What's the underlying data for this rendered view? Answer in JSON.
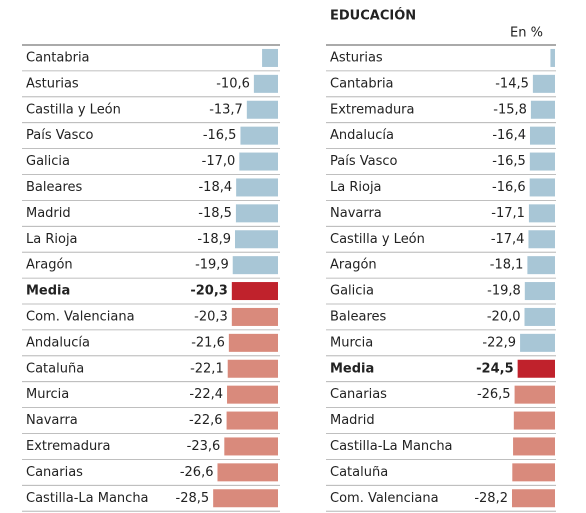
{
  "chart_data": [
    {
      "type": "bar",
      "orientation": "horizontal",
      "categories": [
        "Cantabria",
        "Asturias",
        "Castilla y León",
        "País Vasco",
        "Galicia",
        "Baleares",
        "Madrid",
        "La Rioja",
        "Aragón",
        "Media",
        "Com. Valenciana",
        "Andalucía",
        "Cataluña",
        "Murcia",
        "Navarra",
        "Extremadura",
        "Canarias",
        "Castilla-La Mancha"
      ],
      "values": [
        -7,
        -10.6,
        -13.7,
        -16.5,
        -17.0,
        -18.4,
        -18.5,
        -18.9,
        -19.9,
        -20.3,
        -20.3,
        -21.6,
        -22.1,
        -22.4,
        -22.6,
        -23.6,
        -26.6,
        -28.5
      ],
      "value_labels": [
        null,
        "-10,6",
        "-13,7",
        "-16,5",
        "-17,0",
        "-18,4",
        "-18,5",
        "-18,9",
        "-19,9",
        "-20,3",
        "-20,3",
        "-21,6",
        "-22,1",
        "-22,4",
        "-22,6",
        "-23,6",
        "-26,6",
        "-28,5"
      ],
      "colors": [
        "#a8c6d6",
        "#a8c6d6",
        "#a8c6d6",
        "#a8c6d6",
        "#a8c6d6",
        "#a8c6d6",
        "#a8c6d6",
        "#a8c6d6",
        "#a8c6d6",
        "#c0222c",
        "#d98a7c",
        "#d98a7c",
        "#d98a7c",
        "#d98a7c",
        "#d98a7c",
        "#d98a7c",
        "#d98a7c",
        "#d98a7c"
      ],
      "highlight": "Media",
      "xlim": [
        -40,
        0
      ]
    },
    {
      "type": "bar",
      "orientation": "horizontal",
      "title": "EDUCACIÓN",
      "subtitle": "En %",
      "categories": [
        "Asturias",
        "Cantabria",
        "Extremadura",
        "Andalucía",
        "País Vasco",
        "La Rioja",
        "Navarra",
        "Castilla y León",
        "Aragón",
        "Galicia",
        "Baleares",
        "Murcia",
        "Media",
        "Canarias",
        "Madrid",
        "Castilla-La Mancha",
        "Cataluña",
        "Com. Valenciana"
      ],
      "values": [
        -3,
        -14.5,
        -15.8,
        -16.4,
        -16.5,
        -16.6,
        -17.1,
        -17.4,
        -18.1,
        -19.8,
        -20.0,
        -22.9,
        -24.5,
        -26.5,
        -27,
        -27.5,
        -28,
        -28.2
      ],
      "value_labels": [
        null,
        "-14,5",
        "-15,8",
        "-16,4",
        "-16,5",
        "-16,6",
        "-17,1",
        "-17,4",
        "-18,1",
        "-19,8",
        "-20,0",
        "-22,9",
        "-24,5",
        "-26,5",
        null,
        null,
        null,
        "-28,2"
      ],
      "colors": [
        "#a8c6d6",
        "#a8c6d6",
        "#a8c6d6",
        "#a8c6d6",
        "#a8c6d6",
        "#a8c6d6",
        "#a8c6d6",
        "#a8c6d6",
        "#a8c6d6",
        "#a8c6d6",
        "#a8c6d6",
        "#a8c6d6",
        "#c0222c",
        "#d98a7c",
        "#d98a7c",
        "#d98a7c",
        "#d98a7c",
        "#d98a7c"
      ],
      "highlight": "Media",
      "xlim": [
        -40,
        0
      ]
    }
  ]
}
